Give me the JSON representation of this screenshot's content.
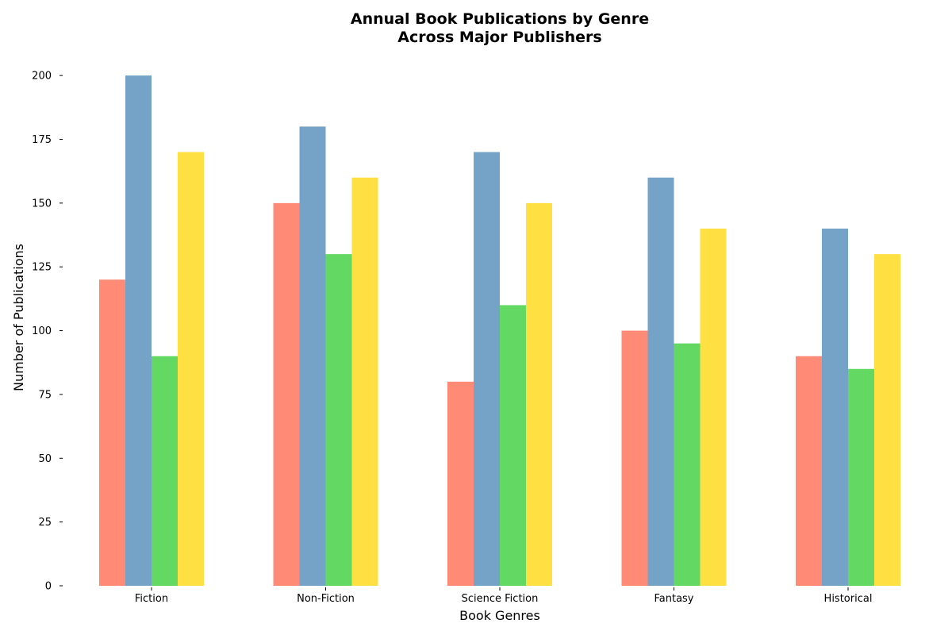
{
  "chart_data": {
    "type": "bar",
    "title": "Annual Book Publications by Genre\nAcross Major Publishers",
    "xlabel": "Book Genres",
    "ylabel": "Number of Publications",
    "categories": [
      "Fiction",
      "Non-Fiction",
      "Science Fiction",
      "Fantasy",
      "Historical"
    ],
    "ylim": [
      0,
      210
    ],
    "yticks": [
      0,
      25,
      50,
      75,
      100,
      125,
      150,
      175,
      200
    ],
    "grid": false,
    "legend": "none",
    "series": [
      {
        "color": "#ff8a75",
        "values": [
          120,
          150,
          80,
          100,
          90
        ]
      },
      {
        "color": "#74a3c7",
        "values": [
          200,
          180,
          170,
          160,
          140
        ]
      },
      {
        "color": "#63d963",
        "values": [
          90,
          130,
          110,
          95,
          85
        ]
      },
      {
        "color": "#ffe042",
        "values": [
          170,
          160,
          150,
          140,
          130
        ]
      }
    ]
  }
}
